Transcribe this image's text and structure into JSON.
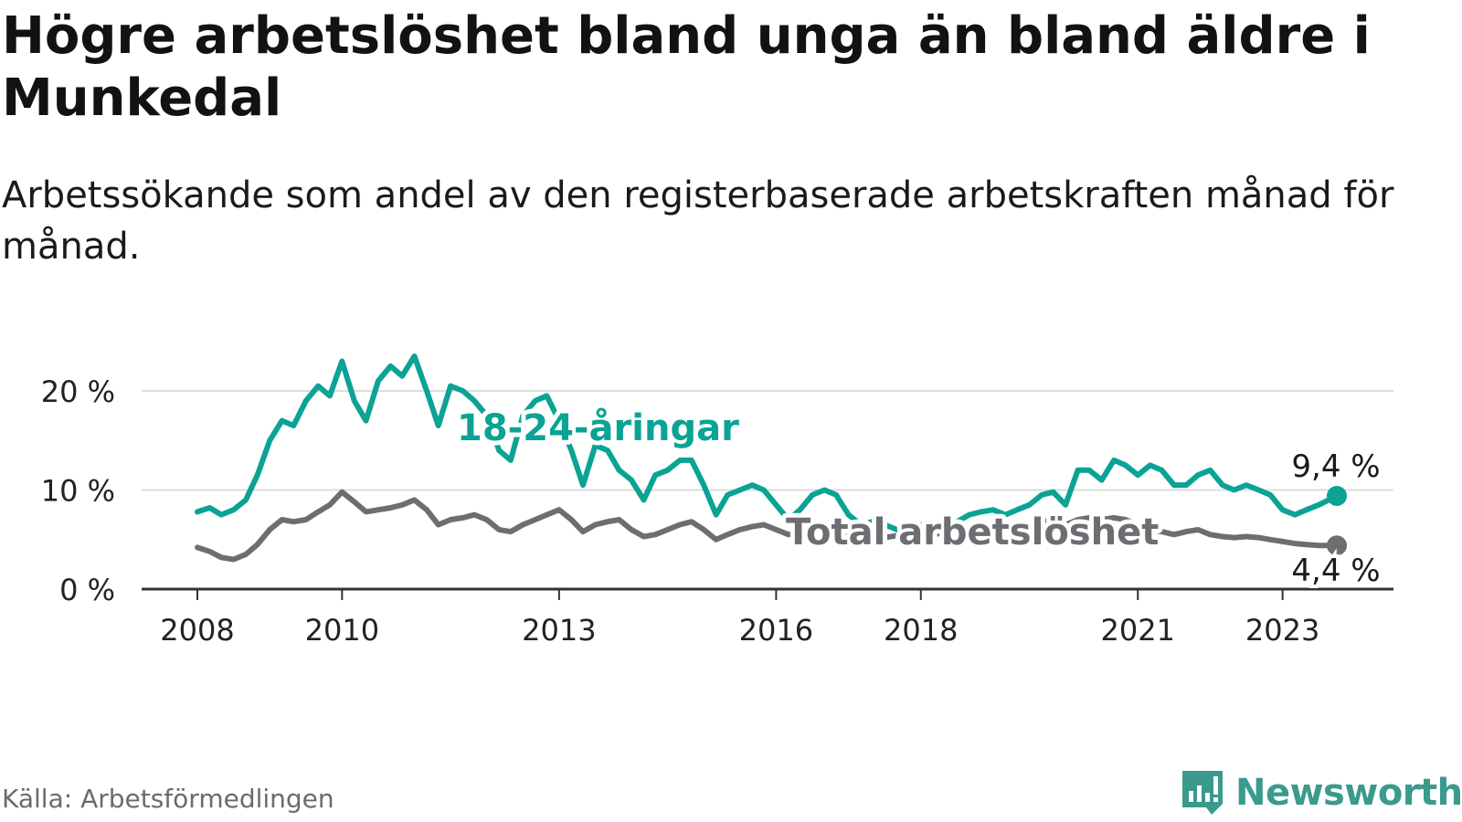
{
  "title": "Högre arbetslöshet bland unga än bland äldre i Munkedal",
  "subtitle": "Arbetssökande som andel av den registerbaserade arbetskraften månad för månad.",
  "source": "Källa: Arbetsförmedlingen",
  "brand": "Newsworthy",
  "colors": {
    "youth": "#0aa394",
    "total": "#6d6d72",
    "grid": "#dcdcdc",
    "axis": "#333333",
    "brand": "#3a9a8c"
  },
  "chart_data": {
    "type": "line",
    "title": "Högre arbetslöshet bland unga än bland äldre i Munkedal",
    "xlabel": "",
    "ylabel": "",
    "xlim": [
      2008,
      2023.75
    ],
    "ylim": [
      0,
      20
    ],
    "yticks": [
      0,
      10,
      20
    ],
    "ytick_labels": [
      "0 %",
      "10 %",
      "20 %"
    ],
    "xticks": [
      2008,
      2010,
      2013,
      2016,
      2018,
      2021,
      2023
    ],
    "xtick_labels": [
      "2008",
      "2010",
      "2013",
      "2016",
      "2018",
      "2021",
      "2023"
    ],
    "grid": true,
    "series": [
      {
        "name": "18-24-åringar",
        "label": "18-24-åringar",
        "end_label": "9,4 %",
        "x": [
          2008.0,
          2008.17,
          2008.33,
          2008.5,
          2008.67,
          2008.83,
          2009.0,
          2009.17,
          2009.33,
          2009.5,
          2009.67,
          2009.83,
          2010.0,
          2010.17,
          2010.33,
          2010.5,
          2010.67,
          2010.83,
          2011.0,
          2011.17,
          2011.33,
          2011.5,
          2011.67,
          2011.83,
          2012.0,
          2012.17,
          2012.33,
          2012.5,
          2012.67,
          2012.83,
          2013.0,
          2013.17,
          2013.33,
          2013.5,
          2013.67,
          2013.83,
          2014.0,
          2014.17,
          2014.33,
          2014.5,
          2014.67,
          2014.83,
          2015.0,
          2015.17,
          2015.33,
          2015.5,
          2015.67,
          2015.83,
          2016.0,
          2016.17,
          2016.33,
          2016.5,
          2016.67,
          2016.83,
          2017.0,
          2017.17,
          2017.33,
          2017.5,
          2017.67,
          2017.83,
          2018.0,
          2018.17,
          2018.33,
          2018.5,
          2018.67,
          2018.83,
          2019.0,
          2019.17,
          2019.33,
          2019.5,
          2019.67,
          2019.83,
          2020.0,
          2020.17,
          2020.33,
          2020.5,
          2020.67,
          2020.83,
          2021.0,
          2021.17,
          2021.33,
          2021.5,
          2021.67,
          2021.83,
          2022.0,
          2022.17,
          2022.33,
          2022.5,
          2022.67,
          2022.83,
          2023.0,
          2023.17,
          2023.33,
          2023.5,
          2023.75
        ],
        "values": [
          7.8,
          8.2,
          7.5,
          8.0,
          9.0,
          11.5,
          15.0,
          17.0,
          16.5,
          19.0,
          20.5,
          19.5,
          23.0,
          19.0,
          17.0,
          21.0,
          22.5,
          21.5,
          23.5,
          20.0,
          16.5,
          20.5,
          20.0,
          19.0,
          17.5,
          14.0,
          13.0,
          17.5,
          19.0,
          19.5,
          17.0,
          14.0,
          10.5,
          14.5,
          14.0,
          12.0,
          11.0,
          9.0,
          11.5,
          12.0,
          13.0,
          13.0,
          10.5,
          7.5,
          9.5,
          10.0,
          10.5,
          10.0,
          8.5,
          7.0,
          8.0,
          9.5,
          10.0,
          9.5,
          7.5,
          6.5,
          6.8,
          6.5,
          6.0,
          6.2,
          6.5,
          6.0,
          6.5,
          6.8,
          7.5,
          7.8,
          8.0,
          7.5,
          8.0,
          8.5,
          9.5,
          9.8,
          8.5,
          12.0,
          12.0,
          11.0,
          13.0,
          12.5,
          11.5,
          12.5,
          12.0,
          10.5,
          10.5,
          11.5,
          12.0,
          10.5,
          10.0,
          10.5,
          10.0,
          9.5,
          8.0,
          7.5,
          8.0,
          8.5,
          9.4
        ]
      },
      {
        "name": "Total arbetslöshet",
        "label": "Total arbetslöshet",
        "end_label": "4,4 %",
        "x": [
          2008.0,
          2008.17,
          2008.33,
          2008.5,
          2008.67,
          2008.83,
          2009.0,
          2009.17,
          2009.33,
          2009.5,
          2009.67,
          2009.83,
          2010.0,
          2010.17,
          2010.33,
          2010.5,
          2010.67,
          2010.83,
          2011.0,
          2011.17,
          2011.33,
          2011.5,
          2011.67,
          2011.83,
          2012.0,
          2012.17,
          2012.33,
          2012.5,
          2012.67,
          2012.83,
          2013.0,
          2013.17,
          2013.33,
          2013.5,
          2013.67,
          2013.83,
          2014.0,
          2014.17,
          2014.33,
          2014.5,
          2014.67,
          2014.83,
          2015.0,
          2015.17,
          2015.33,
          2015.5,
          2015.67,
          2015.83,
          2016.0,
          2016.17,
          2016.33,
          2016.5,
          2016.67,
          2016.83,
          2017.0,
          2017.17,
          2017.33,
          2017.5,
          2017.67,
          2017.83,
          2018.0,
          2018.17,
          2018.33,
          2018.5,
          2018.67,
          2018.83,
          2019.0,
          2019.17,
          2019.33,
          2019.5,
          2019.67,
          2019.83,
          2020.0,
          2020.17,
          2020.33,
          2020.5,
          2020.67,
          2020.83,
          2021.0,
          2021.17,
          2021.33,
          2021.5,
          2021.67,
          2021.83,
          2022.0,
          2022.17,
          2022.33,
          2022.5,
          2022.67,
          2022.83,
          2023.0,
          2023.17,
          2023.33,
          2023.5,
          2023.75
        ],
        "values": [
          4.2,
          3.8,
          3.2,
          3.0,
          3.5,
          4.5,
          6.0,
          7.0,
          6.8,
          7.0,
          7.8,
          8.5,
          9.8,
          8.8,
          7.8,
          8.0,
          8.2,
          8.5,
          9.0,
          8.0,
          6.5,
          7.0,
          7.2,
          7.5,
          7.0,
          6.0,
          5.8,
          6.5,
          7.0,
          7.5,
          8.0,
          7.0,
          5.8,
          6.5,
          6.8,
          7.0,
          6.0,
          5.3,
          5.5,
          6.0,
          6.5,
          6.8,
          6.0,
          5.0,
          5.5,
          6.0,
          6.3,
          6.5,
          6.0,
          5.5,
          5.6,
          5.8,
          6.0,
          5.9,
          5.4,
          5.0,
          5.1,
          5.2,
          5.4,
          5.5,
          5.6,
          5.5,
          5.7,
          5.9,
          6.0,
          6.1,
          6.2,
          6.0,
          6.3,
          6.5,
          6.8,
          7.0,
          6.5,
          7.0,
          7.2,
          7.0,
          7.2,
          7.0,
          6.5,
          6.0,
          5.8,
          5.5,
          5.8,
          6.0,
          5.5,
          5.3,
          5.2,
          5.3,
          5.2,
          5.0,
          4.8,
          4.6,
          4.5,
          4.4,
          4.4
        ]
      }
    ]
  }
}
